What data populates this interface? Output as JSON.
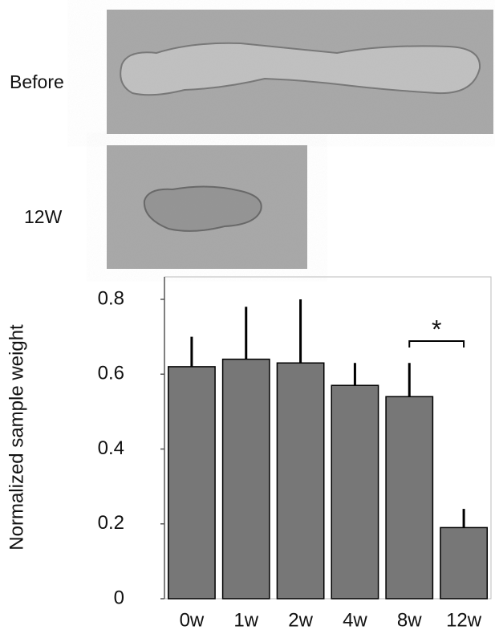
{
  "panels": [
    {
      "label": "Before"
    },
    {
      "label": "12W"
    }
  ],
  "chart_data": {
    "type": "bar",
    "ylabel": "Normalized sample weight",
    "categories": [
      "0w",
      "1w",
      "2w",
      "4w",
      "8w",
      "12w"
    ],
    "values": [
      0.62,
      0.64,
      0.63,
      0.57,
      0.54,
      0.19
    ],
    "errors": [
      0.08,
      0.14,
      0.17,
      0.06,
      0.09,
      0.05
    ],
    "color": "#777777",
    "ylim": [
      0,
      0.86
    ],
    "yticks": [
      0,
      0.2,
      0.4,
      0.6,
      0.8
    ],
    "annotation": "*"
  }
}
